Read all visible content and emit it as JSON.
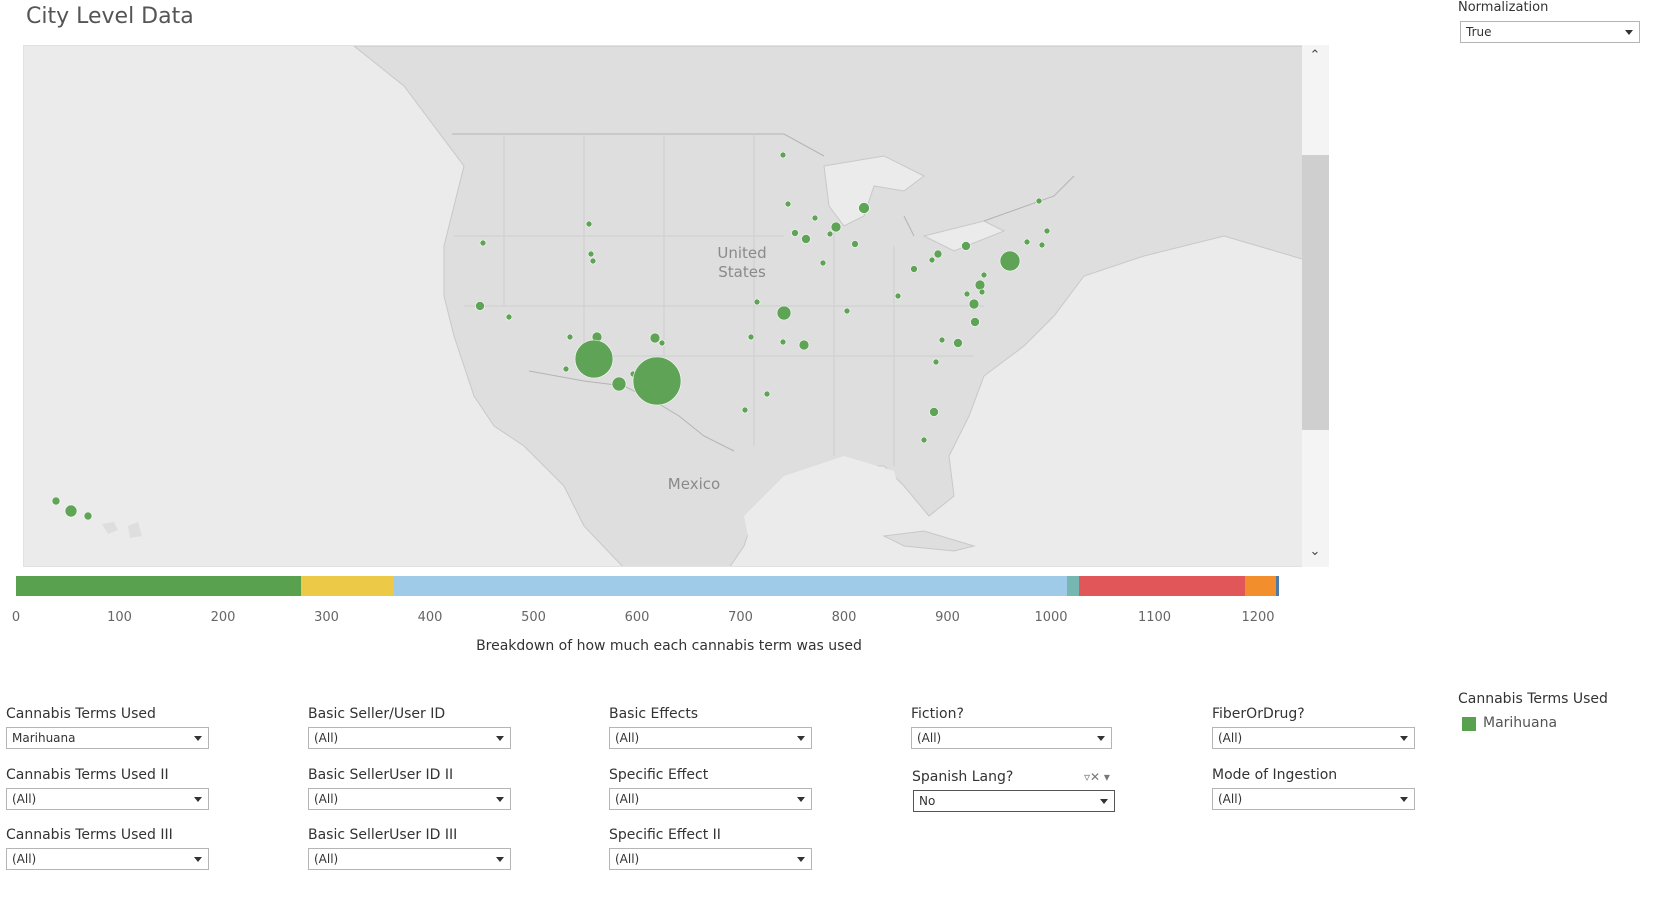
{
  "title": "City Level Data",
  "normalization": {
    "label": "Normalization",
    "value": "True"
  },
  "map": {
    "labels": {
      "country_us": "United\nStates",
      "country_mx": "Mexico"
    },
    "marker_color": "#59a14f"
  },
  "breakdown": {
    "axis_label": "Breakdown of how much each cannabis term was used",
    "ticks": [
      "0",
      "100",
      "200",
      "300",
      "400",
      "500",
      "600",
      "700",
      "800",
      "900",
      "1000",
      "1100",
      "1200"
    ],
    "segments": [
      {
        "color": "#59a14f",
        "start": 0,
        "end": 275
      },
      {
        "color": "#edc948",
        "start": 275,
        "end": 365
      },
      {
        "color": "#a0cbe8",
        "start": 365,
        "end": 1015
      },
      {
        "color": "#76b7b2",
        "start": 1015,
        "end": 1027
      },
      {
        "color": "#e15759",
        "start": 1027,
        "end": 1187
      },
      {
        "color": "#f28e2b",
        "start": 1187,
        "end": 1217
      },
      {
        "color": "#4e79a7",
        "start": 1217,
        "end": 1220
      }
    ]
  },
  "filters": {
    "cannabis_terms_used": {
      "label": "Cannabis Terms Used",
      "value": "Marihuana"
    },
    "cannabis_terms_used_ii": {
      "label": "Cannabis Terms Used II",
      "value": "(All)"
    },
    "cannabis_terms_used_iii": {
      "label": "Cannabis Terms Used III",
      "value": "(All)"
    },
    "basic_seller_user_id": {
      "label": "Basic Seller/User ID",
      "value": "(All)"
    },
    "basic_selleruser_id_ii": {
      "label": "Basic SellerUser ID II",
      "value": "(All)"
    },
    "basic_selleruser_id_iii": {
      "label": "Basic SellerUser ID III",
      "value": "(All)"
    },
    "basic_effects": {
      "label": "Basic Effects",
      "value": "(All)"
    },
    "specific_effect": {
      "label": "Specific Effect",
      "value": "(All)"
    },
    "specific_effect_ii": {
      "label": "Specific Effect II",
      "value": "(All)"
    },
    "fiction": {
      "label": "Fiction?",
      "value": "(All)"
    },
    "spanish_lang": {
      "label": "Spanish Lang?",
      "value": "No"
    },
    "fiber_or_drug": {
      "label": "FiberOrDrug?",
      "value": "(All)"
    },
    "mode_of_ingestion": {
      "label": "Mode of Ingestion",
      "value": "(All)"
    }
  },
  "legend": {
    "title": "Cannabis Terms Used",
    "items": [
      {
        "label": "Marihuana",
        "color": "#59a14f"
      }
    ]
  }
}
